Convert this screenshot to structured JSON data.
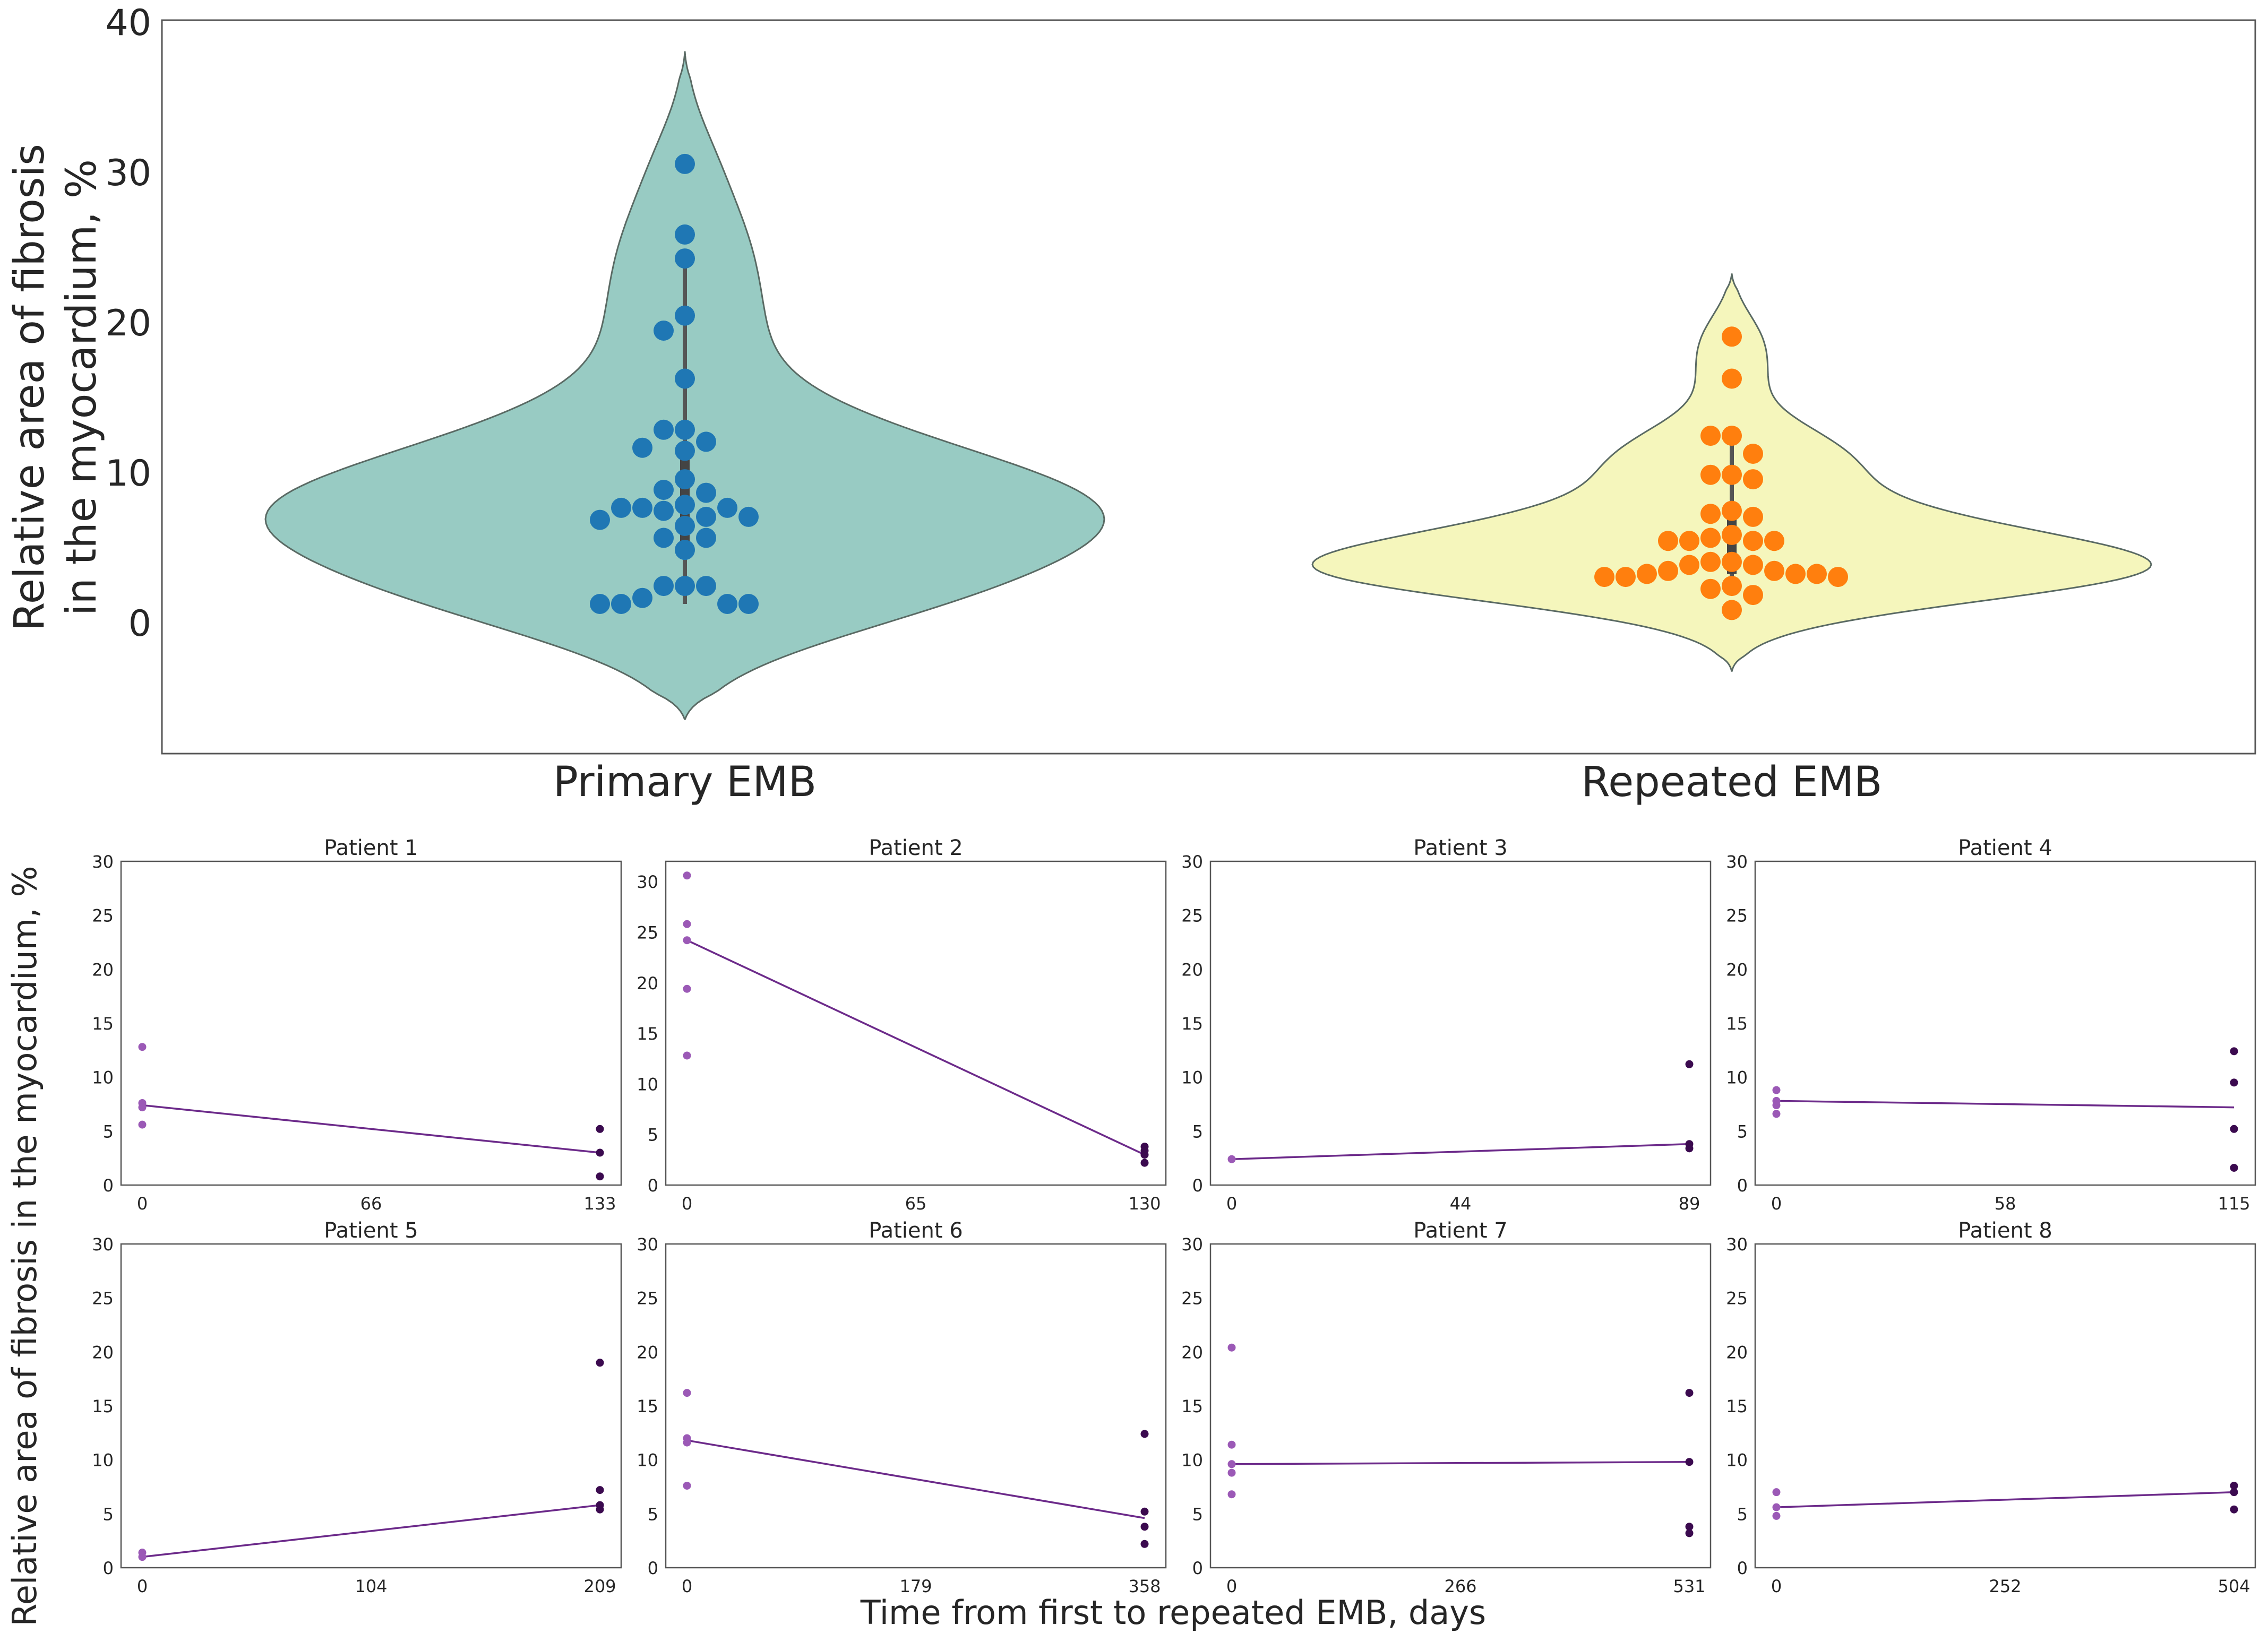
{
  "chart_data": [
    {
      "type": "violin",
      "title": "",
      "xlabel": "",
      "ylabel_lines": [
        "Relative area of fibrosis",
        "in the myocardium, %"
      ],
      "y_ticks": [
        0,
        10,
        20,
        30,
        40
      ],
      "ylim": [
        -9,
        40
      ],
      "categories": [
        "Primary EMB",
        "Repeated EMB"
      ],
      "colors": {
        "primary_violin": "#98cbc3",
        "repeated_violin": "#f5f6bc",
        "primary_points": "#1f77b4",
        "repeated_points": "#ff7f0e"
      },
      "series": [
        {
          "name": "Primary EMB",
          "violin_range": [
            -6.5,
            38
          ],
          "values": [
            30.5,
            25.8,
            24.2,
            20.4,
            19.4,
            16.2,
            12.8,
            12.8,
            12.0,
            11.6,
            11.4,
            9.5,
            8.8,
            8.6,
            7.8,
            7.6,
            7.6,
            7.6,
            7.4,
            7.0,
            7.0,
            6.8,
            6.4,
            5.6,
            5.6,
            4.8,
            2.4,
            2.4,
            2.4,
            1.6,
            1.2,
            1.2,
            1.2,
            1.2
          ]
        },
        {
          "name": "Repeated EMB",
          "violin_range": [
            -3.3,
            23.2
          ],
          "values": [
            19.0,
            16.2,
            12.4,
            12.4,
            11.2,
            9.8,
            9.8,
            9.5,
            7.4,
            7.2,
            7.0,
            5.8,
            5.6,
            5.4,
            5.4,
            5.4,
            5.4,
            4.0,
            4.0,
            3.8,
            3.8,
            3.4,
            3.4,
            3.2,
            3.2,
            3.2,
            3.0,
            3.0,
            3.0,
            2.4,
            2.2,
            1.8,
            0.8
          ]
        }
      ]
    },
    {
      "type": "line",
      "shared_ylabel": "Relative area of fibrosis in the myocardium, %",
      "shared_xlabel": "Time from first to repeated EMB, days",
      "y_ticks": [
        0,
        5,
        10,
        15,
        20,
        25,
        30
      ],
      "colors": {
        "first_points": "#9b59b6",
        "second_points": "#3b0a4f",
        "trend_line": "#6c2a8a"
      },
      "panels": [
        {
          "title": "Patient 1",
          "x_ticks": [
            "0",
            "66",
            "133"
          ],
          "xmax": 133,
          "ymax": 30,
          "first": [
            12.8,
            7.6,
            7.2,
            5.6
          ],
          "second": [
            5.2,
            3.0,
            0.8
          ],
          "line": [
            7.4,
            3.0
          ]
        },
        {
          "title": "Patient 2",
          "x_ticks": [
            "0",
            "65",
            "130"
          ],
          "xmax": 130,
          "ymax": 32,
          "first": [
            30.6,
            25.8,
            24.2,
            19.4,
            12.8
          ],
          "second": [
            3.8,
            3.4,
            3.0,
            2.2
          ],
          "line": [
            24.2,
            3.0
          ]
        },
        {
          "title": "Patient 3",
          "x_ticks": [
            "0",
            "44",
            "89"
          ],
          "xmax": 89,
          "ymax": 30,
          "first": [
            2.4
          ],
          "second": [
            11.2,
            3.8,
            3.4
          ],
          "line": [
            2.4,
            3.8
          ]
        },
        {
          "title": "Patient 4",
          "x_ticks": [
            "0",
            "58",
            "115"
          ],
          "xmax": 115,
          "ymax": 30,
          "first": [
            8.8,
            7.8,
            7.4,
            6.6
          ],
          "second": [
            12.4,
            9.5,
            5.2,
            1.6
          ],
          "line": [
            7.8,
            7.2
          ]
        },
        {
          "title": "Patient 5",
          "x_ticks": [
            "0",
            "104",
            "209"
          ],
          "xmax": 209,
          "ymax": 30,
          "first": [
            1.4,
            1.0
          ],
          "second": [
            19.0,
            7.2,
            5.8,
            5.4
          ],
          "line": [
            1.0,
            5.8
          ]
        },
        {
          "title": "Patient 6",
          "x_ticks": [
            "0",
            "179",
            "358"
          ],
          "xmax": 358,
          "ymax": 30,
          "first": [
            16.2,
            12.0,
            11.6,
            7.6
          ],
          "second": [
            12.4,
            5.2,
            3.8,
            2.2
          ],
          "line": [
            11.8,
            4.6
          ]
        },
        {
          "title": "Patient 7",
          "x_ticks": [
            "0",
            "266",
            "531"
          ],
          "xmax": 531,
          "ymax": 30,
          "first": [
            20.4,
            11.4,
            9.6,
            8.8,
            6.8
          ],
          "second": [
            16.2,
            9.8,
            3.8,
            3.2
          ],
          "line": [
            9.6,
            9.8
          ]
        },
        {
          "title": "Patient 8",
          "x_ticks": [
            "0",
            "252",
            "504"
          ],
          "xmax": 504,
          "ymax": 30,
          "first": [
            7.0,
            5.6,
            4.8
          ],
          "second": [
            7.6,
            7.0,
            5.4
          ],
          "line": [
            5.6,
            7.0
          ]
        }
      ]
    }
  ]
}
